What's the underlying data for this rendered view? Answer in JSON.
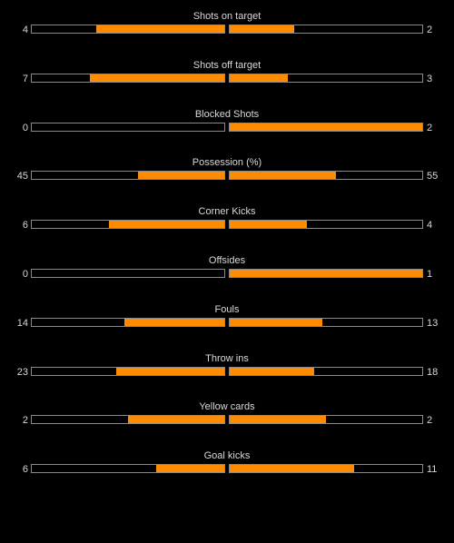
{
  "colors": {
    "background": "#000000",
    "bar_fill": "#ff8c00",
    "bar_border": "#8a8a8a",
    "text": "#d9d9d9"
  },
  "stats": [
    {
      "label": "Shots on target",
      "home": "4",
      "away": "2",
      "home_share": 0.667,
      "away_share": 0.333
    },
    {
      "label": "Shots off target",
      "home": "7",
      "away": "3",
      "home_share": 0.7,
      "away_share": 0.3
    },
    {
      "label": "Blocked Shots",
      "home": "0",
      "away": "2",
      "home_share": 0.0,
      "away_share": 1.0
    },
    {
      "label": "Possession (%)",
      "home": "45",
      "away": "55",
      "home_share": 0.45,
      "away_share": 0.55
    },
    {
      "label": "Corner Kicks",
      "home": "6",
      "away": "4",
      "home_share": 0.6,
      "away_share": 0.4
    },
    {
      "label": "Offsides",
      "home": "0",
      "away": "1",
      "home_share": 0.0,
      "away_share": 1.0
    },
    {
      "label": "Fouls",
      "home": "14",
      "away": "13",
      "home_share": 0.519,
      "away_share": 0.481
    },
    {
      "label": "Throw ins",
      "home": "23",
      "away": "18",
      "home_share": 0.561,
      "away_share": 0.439
    },
    {
      "label": "Yellow cards",
      "home": "2",
      "away": "2",
      "home_share": 0.5,
      "away_share": 0.5
    },
    {
      "label": "Goal kicks",
      "home": "6",
      "away": "11",
      "home_share": 0.353,
      "away_share": 0.647
    }
  ]
}
